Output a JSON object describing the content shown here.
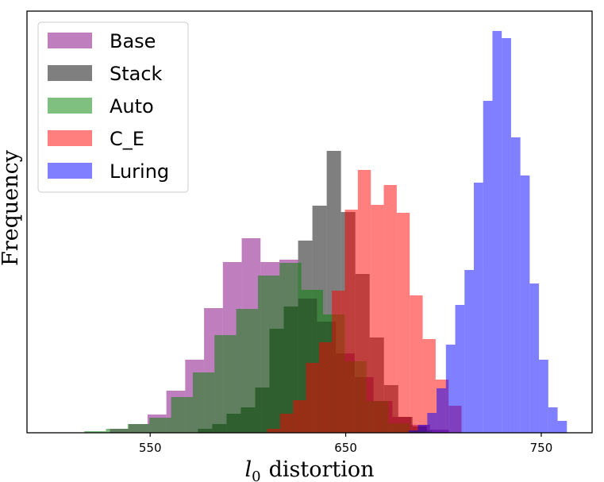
{
  "chart_data": {
    "type": "histogram",
    "title": "",
    "xlabel": "l0 distortion",
    "xlabel_main": "l",
    "xlabel_sub": "0",
    "xlabel_rest": "distortion",
    "ylabel": "Frequency",
    "xlim": [
      487,
      776
    ],
    "x_ticks": [
      550,
      650,
      750
    ],
    "x_tick_labels": [
      "550",
      "650",
      "750"
    ],
    "y_ticks": [],
    "grid": false,
    "legend_position": "top-left",
    "bar_alpha": 0.5,
    "series": [
      {
        "name": "Base",
        "color": "#800080",
        "bin_start": 529.4,
        "bin_width": 9.63,
        "counts": [
          5,
          11,
          23,
          53,
          92,
          157,
          215,
          245,
          215,
          218,
          169,
          140,
          100,
          70,
          40,
          20,
          10,
          4
        ]
      },
      {
        "name": "Stack",
        "color": "#000000",
        "bin_start": 574.4,
        "bin_width": 7.32,
        "counts": [
          5,
          11,
          24,
          32,
          57,
          131,
          159,
          242,
          286,
          355,
          278,
          200,
          120,
          60,
          20,
          8
        ]
      },
      {
        "name": "Auto",
        "color": "#008000",
        "bin_start": 516.3,
        "bin_width": 11.1,
        "counts": [
          2,
          5,
          11,
          19,
          45,
          76,
          123,
          156,
          198,
          214,
          180,
          149,
          90,
          40,
          12,
          3
        ]
      },
      {
        "name": "C_E",
        "color": "#ff0000",
        "bin_start": 609.8,
        "bin_width": 6.63,
        "counts": [
          5,
          24,
          41,
          88,
          114,
          179,
          281,
          331,
          287,
          312,
          277,
          173,
          118,
          67,
          34
        ]
      },
      {
        "name": "Luring",
        "color": "#0000ff",
        "bin_start": 682.2,
        "bin_width": 4.76,
        "counts": [
          3,
          10,
          25,
          56,
          111,
          161,
          205,
          315,
          418,
          506,
          497,
          372,
          324,
          188,
          92,
          32,
          15
        ]
      }
    ]
  }
}
